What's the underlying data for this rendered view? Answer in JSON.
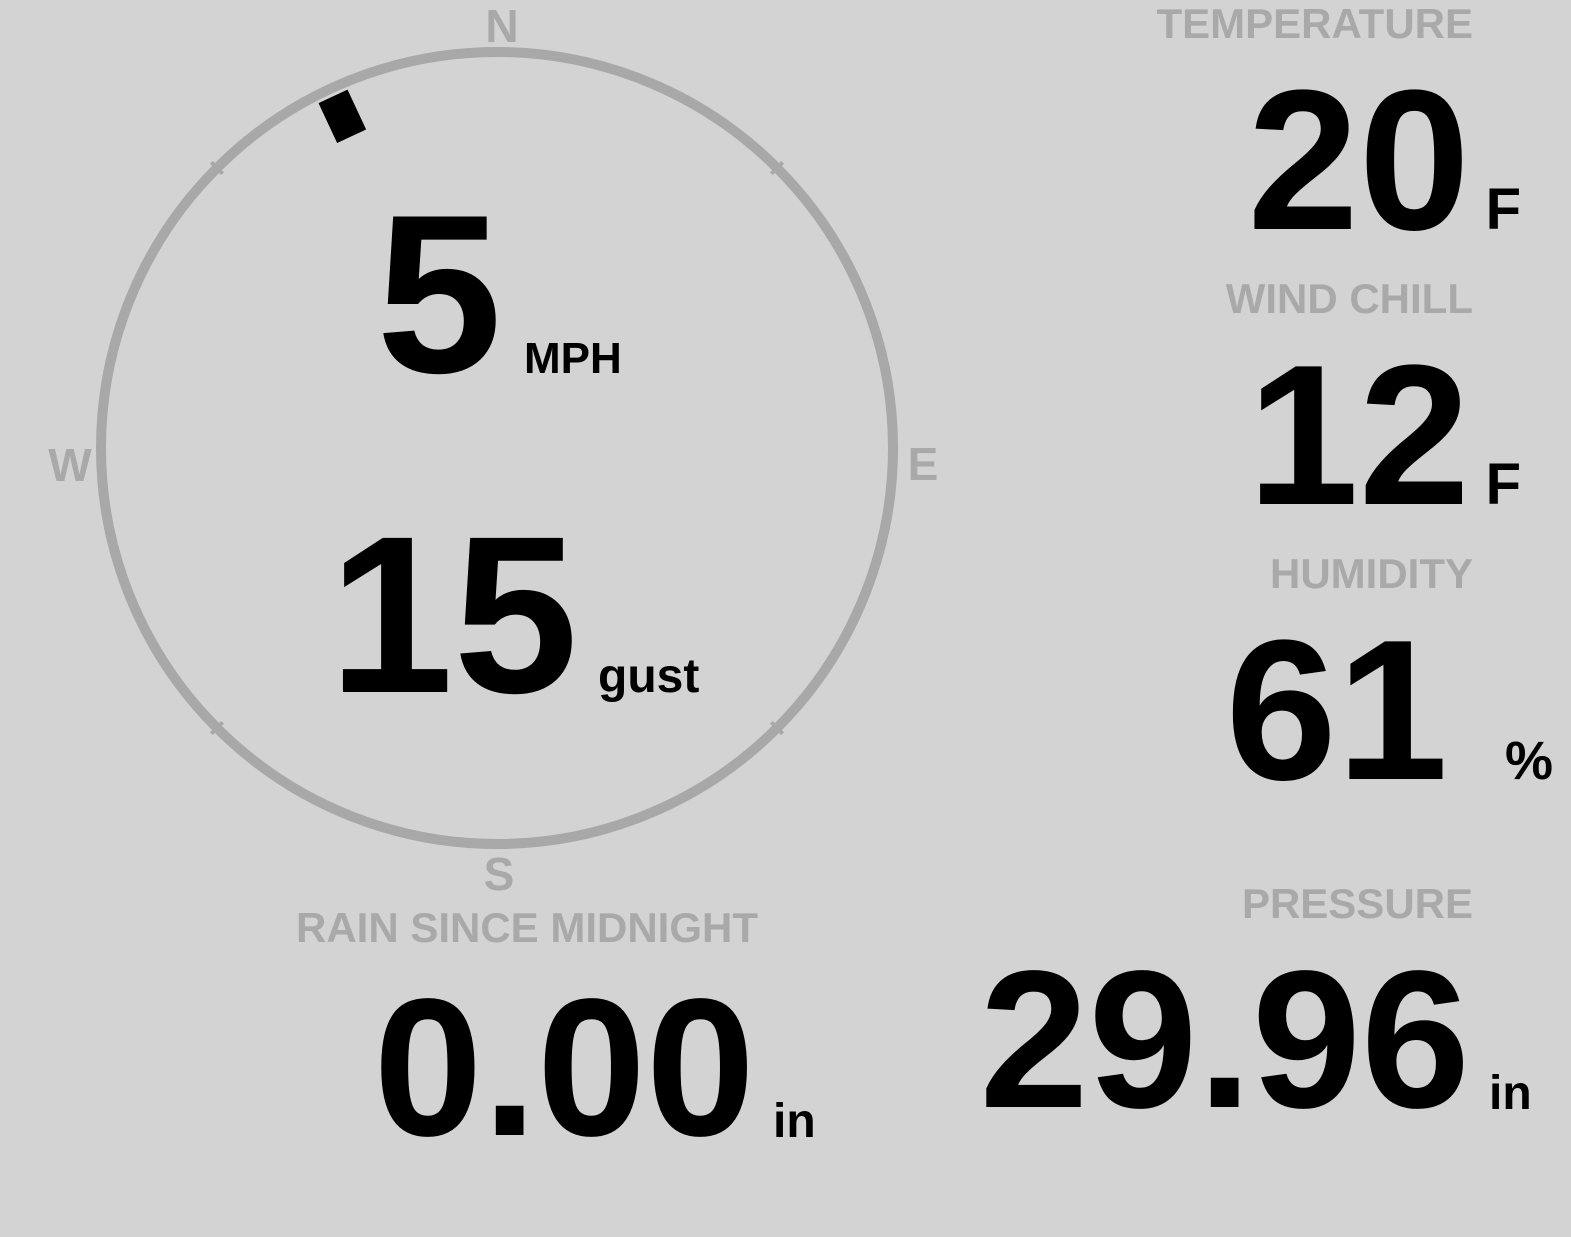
{
  "wind": {
    "speed": "5",
    "speed_unit": "MPH",
    "gust": "15",
    "gust_unit": "gust",
    "direction_degrees": 335,
    "cardinals": {
      "n": "N",
      "e": "E",
      "s": "S",
      "w": "W"
    }
  },
  "temperature": {
    "label": "TEMPERATURE",
    "value": "20",
    "unit": "F"
  },
  "wind_chill": {
    "label": "WIND CHILL",
    "value": "12",
    "unit": "F"
  },
  "humidity": {
    "label": "HUMIDITY",
    "value": "61",
    "unit": "%"
  },
  "rain": {
    "label": "RAIN SINCE MIDNIGHT",
    "value": "0.00",
    "unit": "in"
  },
  "pressure": {
    "label": "PRESSURE",
    "value": "29.96",
    "unit": "in"
  },
  "colors": {
    "background": "#d3d3d3",
    "label": "#a9a9a9",
    "value": "#000000",
    "ring": "#a8a8a8"
  }
}
